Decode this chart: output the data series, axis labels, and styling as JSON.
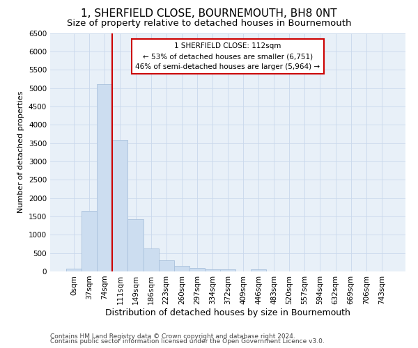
{
  "title": "1, SHERFIELD CLOSE, BOURNEMOUTH, BH8 0NT",
  "subtitle": "Size of property relative to detached houses in Bournemouth",
  "xlabel": "Distribution of detached houses by size in Bournemouth",
  "ylabel": "Number of detached properties",
  "categories": [
    "0sqm",
    "37sqm",
    "74sqm",
    "111sqm",
    "149sqm",
    "186sqm",
    "223sqm",
    "260sqm",
    "297sqm",
    "334sqm",
    "372sqm",
    "409sqm",
    "446sqm",
    "483sqm",
    "520sqm",
    "557sqm",
    "594sqm",
    "632sqm",
    "669sqm",
    "706sqm",
    "743sqm"
  ],
  "bar_values": [
    70,
    1650,
    5100,
    3580,
    1430,
    620,
    310,
    150,
    100,
    50,
    50,
    0,
    50,
    0,
    0,
    0,
    0,
    0,
    0,
    0,
    0
  ],
  "bar_color": "#ccddf0",
  "bar_edge_color": "#a8c0dc",
  "vline_x_index": 3,
  "vline_color": "#cc0000",
  "annotation_text": "1 SHERFIELD CLOSE: 112sqm\n← 53% of detached houses are smaller (6,751)\n46% of semi-detached houses are larger (5,964) →",
  "annotation_box_color": "#ffffff",
  "annotation_box_edgecolor": "#cc0000",
  "ylim": [
    0,
    6500
  ],
  "yticks": [
    0,
    500,
    1000,
    1500,
    2000,
    2500,
    3000,
    3500,
    4000,
    4500,
    5000,
    5500,
    6000,
    6500
  ],
  "grid_color": "#c8d8ec",
  "bg_color": "#e8f0f8",
  "footer1": "Contains HM Land Registry data © Crown copyright and database right 2024.",
  "footer2": "Contains public sector information licensed under the Open Government Licence v3.0.",
  "title_fontsize": 11,
  "subtitle_fontsize": 9.5,
  "xlabel_fontsize": 9,
  "ylabel_fontsize": 8,
  "tick_fontsize": 7.5,
  "footer_fontsize": 6.5
}
